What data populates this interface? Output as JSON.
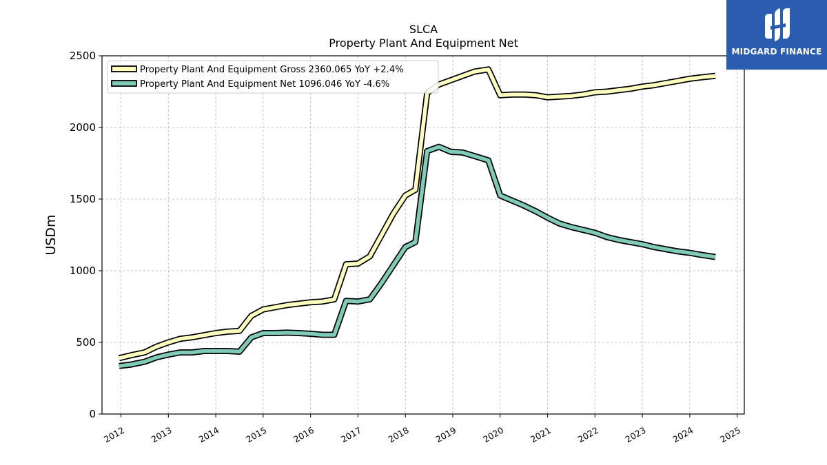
{
  "chart_data": {
    "type": "line",
    "title": "SLCA",
    "subtitle": "Property Plant And Equipment Net",
    "ylabel": "USDm",
    "xlabel": "",
    "ylim": [
      0,
      2500
    ],
    "xlim": [
      2011.6,
      2025.15
    ],
    "yticks": [
      0,
      500,
      1000,
      1500,
      2000,
      2500
    ],
    "xticks": [
      "2012",
      "2013",
      "2014",
      "2015",
      "2016",
      "2017",
      "2018",
      "2019",
      "2020",
      "2021",
      "2022",
      "2023",
      "2024",
      "2025"
    ],
    "grid": true,
    "legend_position": "top-left",
    "series": [
      {
        "name": "Property Plant And Equipment Gross",
        "legend_label": "Property Plant And Equipment Gross  2360.065 YoY +2.4%",
        "color": "#ffffbf",
        "x": [
          2011.96,
          2012.21,
          2012.5,
          2012.75,
          2013.0,
          2013.25,
          2013.5,
          2013.75,
          2014.0,
          2014.25,
          2014.5,
          2014.75,
          2015.0,
          2015.25,
          2015.5,
          2015.75,
          2016.0,
          2016.25,
          2016.5,
          2016.75,
          2017.0,
          2017.25,
          2017.5,
          2017.75,
          2018.0,
          2018.21,
          2018.46,
          2018.71,
          2018.96,
          2019.21,
          2019.46,
          2019.75,
          2020.0,
          2020.25,
          2020.5,
          2020.75,
          2021.0,
          2021.25,
          2021.5,
          2021.75,
          2022.0,
          2022.25,
          2022.5,
          2022.75,
          2023.0,
          2023.25,
          2023.5,
          2023.75,
          2024.0,
          2024.25,
          2024.54
        ],
        "values": [
          390,
          410,
          430,
          470,
          500,
          525,
          535,
          550,
          565,
          575,
          580,
          685,
          730,
          745,
          760,
          770,
          780,
          785,
          800,
          1045,
          1050,
          1100,
          1250,
          1400,
          1525,
          1565,
          2240,
          2300,
          2330,
          2360,
          2390,
          2405,
          2225,
          2230,
          2230,
          2225,
          2210,
          2215,
          2220,
          2230,
          2245,
          2250,
          2260,
          2270,
          2285,
          2295,
          2310,
          2325,
          2340,
          2350,
          2360
        ]
      },
      {
        "name": "Property Plant And Equipment Net",
        "legend_label": "Property Plant And Equipment Net  1096.046 YoY -4.6%",
        "color": "#80cbb8",
        "x": [
          2011.96,
          2012.21,
          2012.5,
          2012.75,
          2013.0,
          2013.25,
          2013.5,
          2013.75,
          2014.0,
          2014.25,
          2014.5,
          2014.75,
          2015.0,
          2015.25,
          2015.5,
          2015.75,
          2016.0,
          2016.25,
          2016.5,
          2016.75,
          2017.0,
          2017.25,
          2017.5,
          2017.75,
          2018.0,
          2018.21,
          2018.46,
          2018.71,
          2018.96,
          2019.21,
          2019.46,
          2019.75,
          2020.0,
          2020.25,
          2020.5,
          2020.75,
          2021.0,
          2021.25,
          2021.5,
          2021.75,
          2022.0,
          2022.25,
          2022.5,
          2022.75,
          2023.0,
          2023.25,
          2023.5,
          2023.75,
          2024.0,
          2024.25,
          2024.54
        ],
        "values": [
          335,
          345,
          365,
          395,
          415,
          430,
          430,
          440,
          440,
          440,
          435,
          535,
          565,
          565,
          568,
          565,
          560,
          553,
          553,
          790,
          785,
          800,
          915,
          1040,
          1165,
          1200,
          1835,
          1865,
          1830,
          1825,
          1800,
          1770,
          1525,
          1490,
          1455,
          1415,
          1370,
          1330,
          1305,
          1285,
          1265,
          1235,
          1215,
          1200,
          1185,
          1165,
          1150,
          1135,
          1125,
          1110,
          1096
        ]
      }
    ]
  },
  "branding": {
    "logo_text": "MIDGARD FINANCE"
  }
}
